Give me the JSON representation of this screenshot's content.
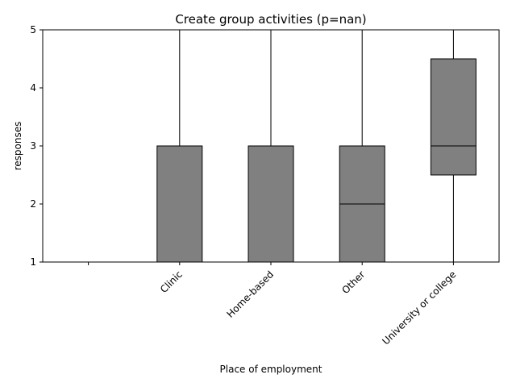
{
  "chart_data": {
    "type": "box",
    "title": "Create group activities (p=nan)",
    "xlabel": "Place of employment",
    "ylabel": "responses",
    "ylim": [
      1,
      5
    ],
    "yticks": [
      1,
      2,
      3,
      4,
      5
    ],
    "categories": [
      "",
      "Clinic",
      "Home-based",
      "Other",
      "University or college"
    ],
    "boxes": [
      null,
      {
        "whisker_low": 1,
        "q1": 1,
        "median": 3,
        "q3": 3,
        "whisker_high": 5
      },
      {
        "whisker_low": 1,
        "q1": 1,
        "median": 3,
        "q3": 3,
        "whisker_high": 5
      },
      {
        "whisker_low": 1,
        "q1": 1,
        "median": 2,
        "q3": 3,
        "whisker_high": 5
      },
      {
        "whisker_low": 1,
        "q1": 2.5,
        "median": 3,
        "q3": 4.5,
        "whisker_high": 5
      }
    ],
    "box_color": "#808080",
    "line_color": "#000000",
    "grid": false,
    "legend": "none"
  }
}
